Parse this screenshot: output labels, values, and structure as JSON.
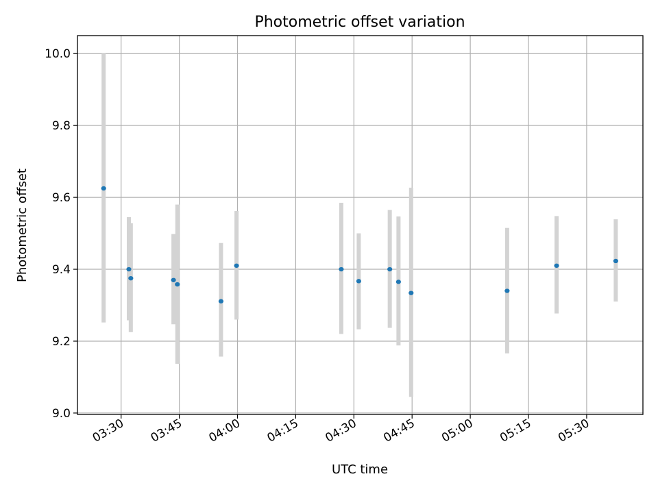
{
  "chart_data": {
    "type": "scatter",
    "title": "Photometric offset variation",
    "xlabel": "UTC time",
    "ylabel": "Photometric offset",
    "ylim": [
      8.996,
      10.05
    ],
    "xlim": [
      "03:18:45",
      "05:44:30"
    ],
    "yticks": [
      "9.0",
      "9.2",
      "9.4",
      "9.6",
      "9.8",
      "10.0"
    ],
    "xticks": [
      "03:30",
      "03:45",
      "04:00",
      "04:15",
      "04:30",
      "04:45",
      "05:00",
      "05:15",
      "05:30"
    ],
    "grid": true,
    "legend": "none",
    "colors": {
      "point": "#1f77b4",
      "errorbar": "#d3d3d3",
      "grid": "#b0b0b0",
      "axes": "#000000"
    },
    "points": [
      {
        "x": "03:25:30",
        "y": 9.625,
        "y_low": 9.252,
        "y_high": 10.0
      },
      {
        "x": "03:32:00",
        "y": 9.4,
        "y_low": 9.258,
        "y_high": 9.545
      },
      {
        "x": "03:32:30",
        "y": 9.375,
        "y_low": 9.225,
        "y_high": 9.528
      },
      {
        "x": "03:43:30",
        "y": 9.37,
        "y_low": 9.247,
        "y_high": 9.498
      },
      {
        "x": "03:44:30",
        "y": 9.358,
        "y_low": 9.137,
        "y_high": 9.58
      },
      {
        "x": "03:55:45",
        "y": 9.311,
        "y_low": 9.157,
        "y_high": 9.473
      },
      {
        "x": "03:59:45",
        "y": 9.41,
        "y_low": 9.26,
        "y_high": 9.562
      },
      {
        "x": "04:26:45",
        "y": 9.4,
        "y_low": 9.22,
        "y_high": 9.585
      },
      {
        "x": "04:31:15",
        "y": 9.367,
        "y_low": 9.233,
        "y_high": 9.5
      },
      {
        "x": "04:39:15",
        "y": 9.4,
        "y_low": 9.237,
        "y_high": 9.565
      },
      {
        "x": "04:41:30",
        "y": 9.365,
        "y_low": 9.188,
        "y_high": 9.547
      },
      {
        "x": "04:44:45",
        "y": 9.334,
        "y_low": 9.045,
        "y_high": 9.627
      },
      {
        "x": "05:09:30",
        "y": 9.34,
        "y_low": 9.166,
        "y_high": 9.515
      },
      {
        "x": "05:22:15",
        "y": 9.41,
        "y_low": 9.277,
        "y_high": 9.548
      },
      {
        "x": "05:37:30",
        "y": 9.423,
        "y_low": 9.31,
        "y_high": 9.539
      }
    ]
  }
}
